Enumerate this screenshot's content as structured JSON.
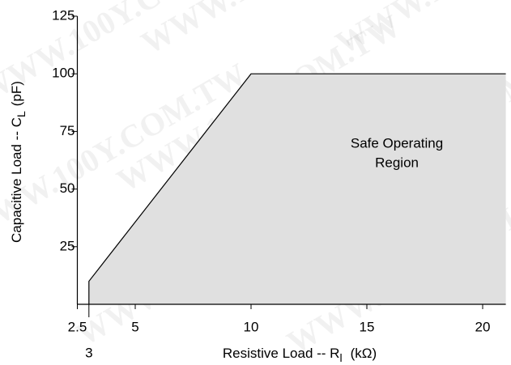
{
  "chart_data": {
    "type": "area",
    "watermark": "WWW.100Y.COM.TW",
    "annotation": [
      "Safe Operating",
      "Region"
    ],
    "xlabel": {
      "text": "Resistive Load -- R",
      "subscript": "l",
      "unit": "(kΩ)"
    },
    "ylabel": {
      "text": "Capacitive Load -- C",
      "subscript": "L",
      "unit": "(pF)"
    },
    "x": [
      3,
      3,
      10,
      21
    ],
    "values": [
      0,
      10,
      100,
      100
    ],
    "color": "#e0e0e0",
    "line_color": "#000000",
    "xlim": [
      2.5,
      21
    ],
    "xticks": [
      2.5,
      3,
      5,
      10,
      15,
      20
    ],
    "ylim": [
      0,
      125
    ],
    "yticks": [
      25,
      50,
      75,
      100,
      125
    ],
    "grid": false
  }
}
